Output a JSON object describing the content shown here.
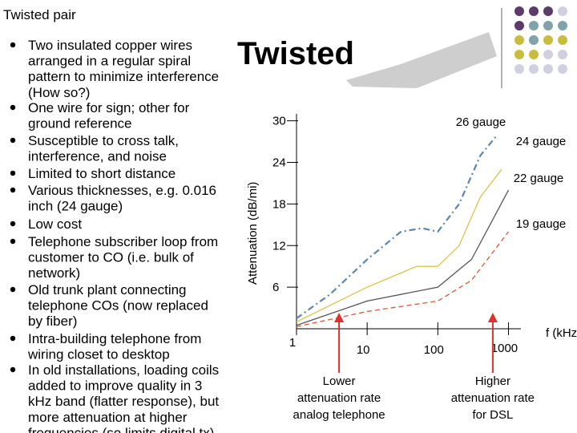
{
  "slide": {
    "title": "Twisted",
    "heading": "Twisted pair",
    "bullets": [
      [
        "Two insulated copper wires",
        "arranged in a regular spiral",
        "pattern to minimize interference",
        "(How so?)"
      ],
      [
        "One wire  for sign; other for",
        "ground reference"
      ],
      [
        "Susceptible to cross talk,",
        "interference, and noise"
      ],
      [
        "Limited to short distance"
      ],
      [
        "Various thicknesses, e.g. 0.016",
        "inch (24 gauge)"
      ],
      [
        "Low cost"
      ],
      [
        "Telephone subscriber loop from",
        "customer to CO (i.e. bulk of",
        "network)"
      ],
      [
        "Old trunk plant connecting",
        "telephone COs (now replaced",
        "by fiber)"
      ],
      [
        "Intra-building telephone from",
        "wiring closet to desktop"
      ],
      [
        "In old installations, loading coils",
        "added to improve quality in 3",
        "kHz band (flatter response), but",
        "more attenuation at higher",
        "frequencies (so limits digital tx)"
      ]
    ]
  },
  "chart_data": {
    "type": "line",
    "y_label": "Attenuation (dB/mi)",
    "x_label": "f  (kHz)",
    "x_scale": "log",
    "xlim": [
      1,
      1500
    ],
    "xticks": [
      1,
      10,
      100,
      1000
    ],
    "ylim": [
      0,
      31
    ],
    "yticks": [
      6,
      12,
      18,
      24,
      30
    ],
    "series": [
      {
        "name": "26 gauge",
        "color": "#5b86ab",
        "line_style": "dashdot",
        "x": [
          1,
          3,
          10,
          30,
          60,
          100,
          200,
          400,
          700
        ],
        "values": [
          1.5,
          5,
          10,
          14,
          14.5,
          14,
          18,
          25,
          28
        ]
      },
      {
        "name": "24 gauge",
        "color": "#d8c64a",
        "line_style": "solid",
        "x": [
          1,
          10,
          50,
          100,
          200,
          400,
          800
        ],
        "values": [
          1,
          6,
          9,
          9,
          12,
          19,
          23
        ]
      },
      {
        "name": "22 gauge",
        "color": "#555555",
        "line_style": "solid",
        "x": [
          1,
          10,
          100,
          300,
          1000
        ],
        "values": [
          0.5,
          4,
          6,
          10,
          20
        ]
      },
      {
        "name": "19 gauge",
        "color": "#d9573a",
        "line_style": "dashed",
        "x": [
          1,
          10,
          100,
          300,
          1000
        ],
        "values": [
          0.3,
          2.5,
          4,
          7,
          14
        ]
      }
    ],
    "annotations": [
      {
        "text": [
          "Lower",
          "attenuation rate",
          "analog telephone"
        ],
        "x": 4
      },
      {
        "text": [
          "Higher",
          "attenuation rate",
          "for DSL"
        ],
        "x": 600
      }
    ]
  }
}
